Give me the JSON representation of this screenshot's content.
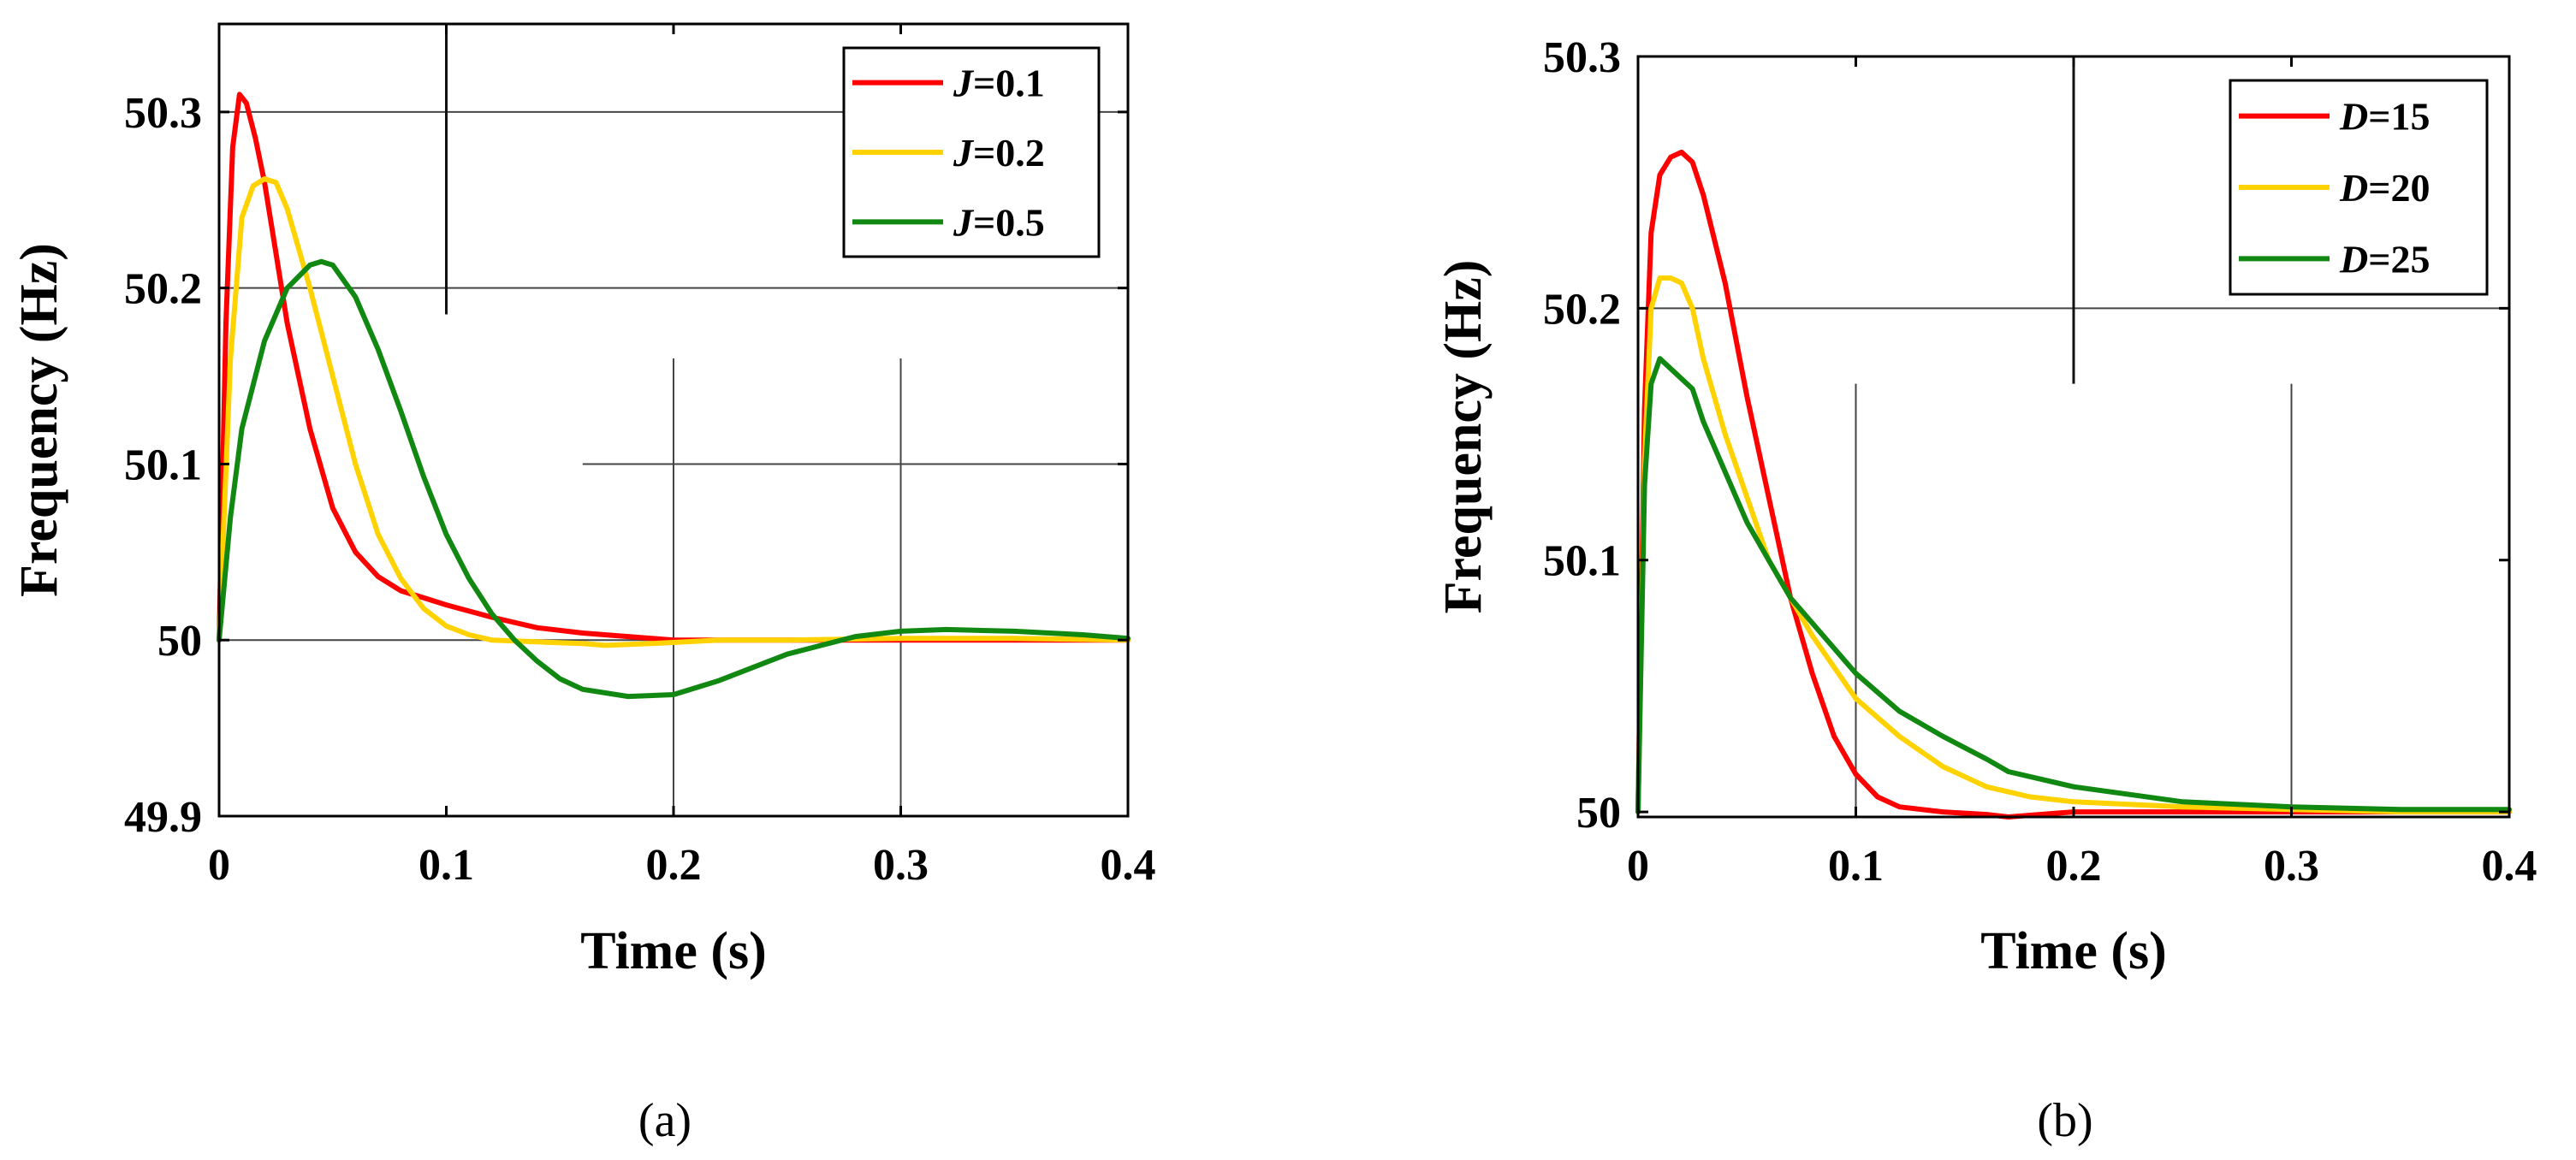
{
  "chart_data": [
    {
      "id": "a",
      "type": "line",
      "caption": "(a)",
      "title": "",
      "xlabel": "Time (s)",
      "ylabel": "Frequency (Hz)",
      "xlim": [
        0,
        0.4
      ],
      "ylim": [
        49.9,
        50.35
      ],
      "xticks": [
        0,
        0.1,
        0.2,
        0.3,
        0.4
      ],
      "xtick_labels": [
        "0",
        "0.1",
        "0.2",
        "0.3",
        "0.4"
      ],
      "yticks": [
        49.9,
        50,
        50.1,
        50.2,
        50.3
      ],
      "ytick_labels": [
        "49.9",
        "50",
        "50.1",
        "50.2",
        "50.3"
      ],
      "legend_position": "top-right",
      "series": [
        {
          "name": "J=0.1",
          "param": "J",
          "value_label": "=0.1",
          "color": "#ff0000",
          "x": [
            0,
            0.003,
            0.006,
            0.009,
            0.012,
            0.016,
            0.02,
            0.025,
            0.03,
            0.035,
            0.04,
            0.05,
            0.06,
            0.07,
            0.08,
            0.09,
            0.1,
            0.12,
            0.14,
            0.16,
            0.18,
            0.2,
            0.25,
            0.3,
            0.35,
            0.4
          ],
          "y": [
            50.0,
            50.18,
            50.28,
            50.31,
            50.305,
            50.285,
            50.26,
            50.22,
            50.18,
            50.15,
            50.12,
            50.075,
            50.05,
            50.036,
            50.028,
            50.024,
            50.02,
            50.013,
            50.007,
            50.004,
            50.002,
            50.0,
            50.0,
            50.0,
            50.0,
            50.0
          ]
        },
        {
          "name": "J=0.2",
          "param": "J",
          "value_label": "=0.2",
          "color": "#ffd200",
          "x": [
            0,
            0.005,
            0.01,
            0.015,
            0.02,
            0.025,
            0.03,
            0.04,
            0.05,
            0.06,
            0.07,
            0.08,
            0.09,
            0.1,
            0.11,
            0.12,
            0.14,
            0.16,
            0.17,
            0.19,
            0.22,
            0.25,
            0.3,
            0.35,
            0.4
          ],
          "y": [
            50.0,
            50.16,
            50.24,
            50.258,
            50.262,
            50.26,
            50.245,
            50.2,
            50.15,
            50.1,
            50.06,
            50.035,
            50.018,
            50.008,
            50.003,
            50.0,
            49.999,
            49.998,
            49.997,
            49.998,
            50.0,
            50.0,
            50.001,
            50.001,
            50.0
          ]
        },
        {
          "name": "J=0.5",
          "param": "J",
          "value_label": "=0.5",
          "color": "#118811",
          "x": [
            0,
            0.005,
            0.01,
            0.02,
            0.03,
            0.04,
            0.045,
            0.05,
            0.06,
            0.07,
            0.08,
            0.09,
            0.1,
            0.11,
            0.12,
            0.13,
            0.14,
            0.15,
            0.16,
            0.18,
            0.2,
            0.22,
            0.25,
            0.28,
            0.3,
            0.32,
            0.35,
            0.38,
            0.4
          ],
          "y": [
            50.0,
            50.07,
            50.12,
            50.17,
            50.2,
            50.213,
            50.215,
            50.213,
            50.195,
            50.165,
            50.13,
            50.093,
            50.06,
            50.035,
            50.015,
            50.0,
            49.988,
            49.978,
            49.972,
            49.968,
            49.969,
            49.977,
            49.992,
            50.002,
            50.005,
            50.006,
            50.005,
            50.003,
            50.001
          ]
        }
      ]
    },
    {
      "id": "b",
      "type": "line",
      "caption": "(b)",
      "title": "",
      "xlabel": "Time (s)",
      "ylabel": "Frequency (Hz)",
      "xlim": [
        0,
        0.4
      ],
      "ylim": [
        49.998,
        50.3
      ],
      "xticks": [
        0,
        0.1,
        0.2,
        0.3,
        0.4
      ],
      "xtick_labels": [
        "0",
        "0.1",
        "0.2",
        "0.3",
        "0.4"
      ],
      "yticks": [
        50,
        50.1,
        50.2,
        50.3
      ],
      "ytick_labels": [
        "50",
        "50.1",
        "50.2",
        "50.3"
      ],
      "legend_position": "top-right",
      "series": [
        {
          "name": "D=15",
          "param": "D",
          "value_label": "=15",
          "color": "#ff0000",
          "x": [
            0,
            0.003,
            0.006,
            0.01,
            0.015,
            0.02,
            0.025,
            0.03,
            0.04,
            0.05,
            0.06,
            0.07,
            0.08,
            0.09,
            0.1,
            0.11,
            0.12,
            0.14,
            0.16,
            0.17,
            0.2,
            0.25,
            0.3,
            0.35,
            0.4
          ],
          "y": [
            50.0,
            50.16,
            50.23,
            50.253,
            50.26,
            50.262,
            50.258,
            50.245,
            50.21,
            50.165,
            50.125,
            50.085,
            50.055,
            50.03,
            50.015,
            50.006,
            50.002,
            50.0,
            49.999,
            49.998,
            50.0,
            50.0,
            50.0,
            50.0,
            50.0
          ]
        },
        {
          "name": "D=20",
          "param": "D",
          "value_label": "=20",
          "color": "#ffd200",
          "x": [
            0,
            0.003,
            0.006,
            0.01,
            0.015,
            0.02,
            0.025,
            0.03,
            0.04,
            0.05,
            0.06,
            0.07,
            0.08,
            0.1,
            0.12,
            0.14,
            0.16,
            0.18,
            0.2,
            0.25,
            0.3,
            0.35,
            0.4
          ],
          "y": [
            50.0,
            50.14,
            50.2,
            50.212,
            50.212,
            50.21,
            50.2,
            50.18,
            50.15,
            50.125,
            50.1,
            50.085,
            50.07,
            50.045,
            50.03,
            50.018,
            50.01,
            50.006,
            50.004,
            50.002,
            50.001,
            50.0,
            50.0
          ]
        },
        {
          "name": "D=25",
          "param": "D",
          "value_label": "=25",
          "color": "#118811",
          "x": [
            0,
            0.003,
            0.006,
            0.01,
            0.015,
            0.02,
            0.025,
            0.03,
            0.04,
            0.05,
            0.06,
            0.07,
            0.08,
            0.1,
            0.12,
            0.14,
            0.16,
            0.17,
            0.2,
            0.25,
            0.3,
            0.35,
            0.4
          ],
          "y": [
            50.0,
            50.13,
            50.17,
            50.18,
            50.176,
            50.172,
            50.168,
            50.155,
            50.135,
            50.115,
            50.1,
            50.085,
            50.075,
            50.055,
            50.04,
            50.03,
            50.021,
            50.016,
            50.01,
            50.004,
            50.002,
            50.001,
            50.001
          ]
        }
      ]
    }
  ]
}
